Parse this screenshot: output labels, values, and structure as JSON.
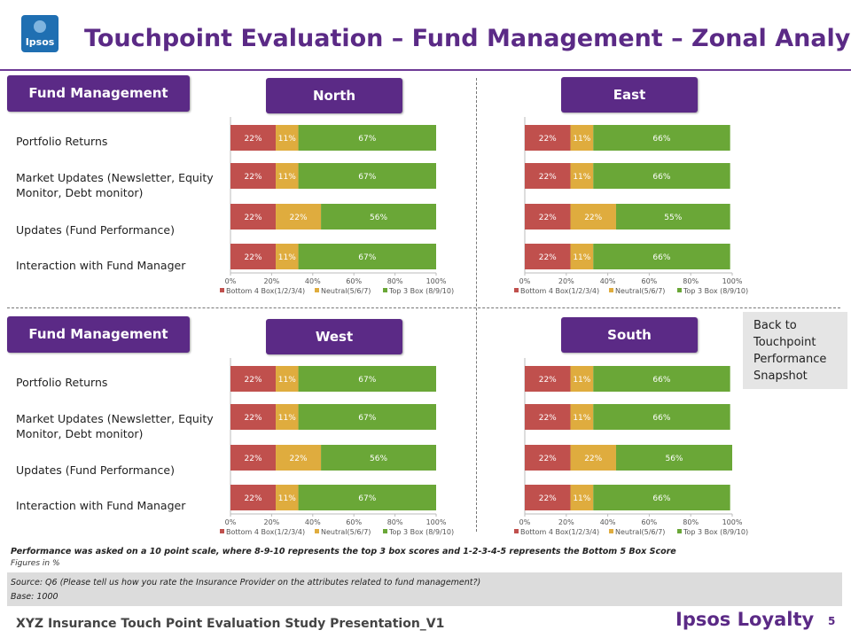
{
  "header": {
    "logo_text": "Ipsos",
    "title": "Touchpoint Evaluation – Fund Management – Zonal Analysis"
  },
  "section_label": "Fund Management",
  "attributes": [
    "Portfolio Returns",
    "Market Updates (Newsletter, Equity Monitor, Debt monitor)",
    "Updates (Fund Performance)",
    "Interaction with Fund Manager"
  ],
  "colors": {
    "bottom": "#c0504d",
    "neutral": "#dfac3e",
    "top": "#6aa737",
    "accent": "#5b2a86"
  },
  "back_link": "Back to Touchpoint Performance Snapshot",
  "note": "Performance was asked on a 10 point scale, where 8-9-10 represents the top 3 box scores and 1-2-3-4-5 represents the Bottom 5 Box Score",
  "figures_note": "Figures in %",
  "source": "Source: Q6  (Please tell us how you rate the Insurance Provider on the attributes related to fund management?)",
  "base": "Base: 1000",
  "footer": "XYZ Insurance Touch Point Evaluation Study Presentation_V1",
  "brand": "Ipsos Loyalty",
  "page_number": "5",
  "chart_data": [
    {
      "type": "bar",
      "orientation": "horizontal",
      "stacked": true,
      "title": "North",
      "categories": [
        "Portfolio Returns",
        "Market Updates (Newsletter, Equity Monitor, Debt monitor)",
        "Updates (Fund Performance)",
        "Interaction with Fund Manager"
      ],
      "series": [
        {
          "name": "Bottom 4 Box(1/2/3/4)",
          "values": [
            22,
            22,
            22,
            22
          ]
        },
        {
          "name": "Neutral(5/6/7)",
          "values": [
            11,
            11,
            22,
            11
          ]
        },
        {
          "name": "Top 3 Box (8/9/10)",
          "values": [
            67,
            67,
            56,
            67
          ]
        }
      ],
      "xlim": [
        0,
        100
      ],
      "x_ticks": [
        "0%",
        "20%",
        "40%",
        "60%",
        "80%",
        "100%"
      ],
      "legend": "bottom",
      "grid": false
    },
    {
      "type": "bar",
      "orientation": "horizontal",
      "stacked": true,
      "title": "East",
      "categories": [
        "Portfolio Returns",
        "Market Updates (Newsletter, Equity Monitor, Debt monitor)",
        "Updates (Fund Performance)",
        "Interaction with Fund Manager"
      ],
      "series": [
        {
          "name": "Bottom 4 Box(1/2/3/4)",
          "values": [
            22,
            22,
            22,
            22
          ]
        },
        {
          "name": "Neutral(5/6/7)",
          "values": [
            11,
            11,
            22,
            11
          ]
        },
        {
          "name": "Top 3 Box (8/9/10)",
          "values": [
            66,
            66,
            55,
            66
          ]
        }
      ],
      "xlim": [
        0,
        100
      ],
      "x_ticks": [
        "0%",
        "20%",
        "40%",
        "60%",
        "80%",
        "100%"
      ],
      "legend": "bottom",
      "grid": false
    },
    {
      "type": "bar",
      "orientation": "horizontal",
      "stacked": true,
      "title": "West",
      "categories": [
        "Portfolio Returns",
        "Market Updates (Newsletter, Equity Monitor, Debt monitor)",
        "Updates (Fund Performance)",
        "Interaction with Fund Manager"
      ],
      "series": [
        {
          "name": "Bottom 4 Box(1/2/3/4)",
          "values": [
            22,
            22,
            22,
            22
          ]
        },
        {
          "name": "Neutral(5/6/7)",
          "values": [
            11,
            11,
            22,
            11
          ]
        },
        {
          "name": "Top 3 Box (8/9/10)",
          "values": [
            67,
            67,
            56,
            67
          ]
        }
      ],
      "xlim": [
        0,
        100
      ],
      "x_ticks": [
        "0%",
        "20%",
        "40%",
        "60%",
        "80%",
        "100%"
      ],
      "legend": "bottom",
      "grid": false
    },
    {
      "type": "bar",
      "orientation": "horizontal",
      "stacked": true,
      "title": "South",
      "categories": [
        "Portfolio Returns",
        "Market Updates (Newsletter, Equity Monitor, Debt monitor)",
        "Updates (Fund Performance)",
        "Interaction with Fund Manager"
      ],
      "series": [
        {
          "name": "Bottom 4 Box(1/2/3/4)",
          "values": [
            22,
            22,
            22,
            22
          ]
        },
        {
          "name": "Neutral(5/6/7)",
          "values": [
            11,
            11,
            22,
            11
          ]
        },
        {
          "name": "Top 3 Box (8/9/10)",
          "values": [
            66,
            66,
            56,
            66
          ]
        }
      ],
      "xlim": [
        0,
        100
      ],
      "x_ticks": [
        "0%",
        "20%",
        "40%",
        "60%",
        "80%",
        "100%"
      ],
      "legend": "bottom",
      "grid": false
    }
  ]
}
